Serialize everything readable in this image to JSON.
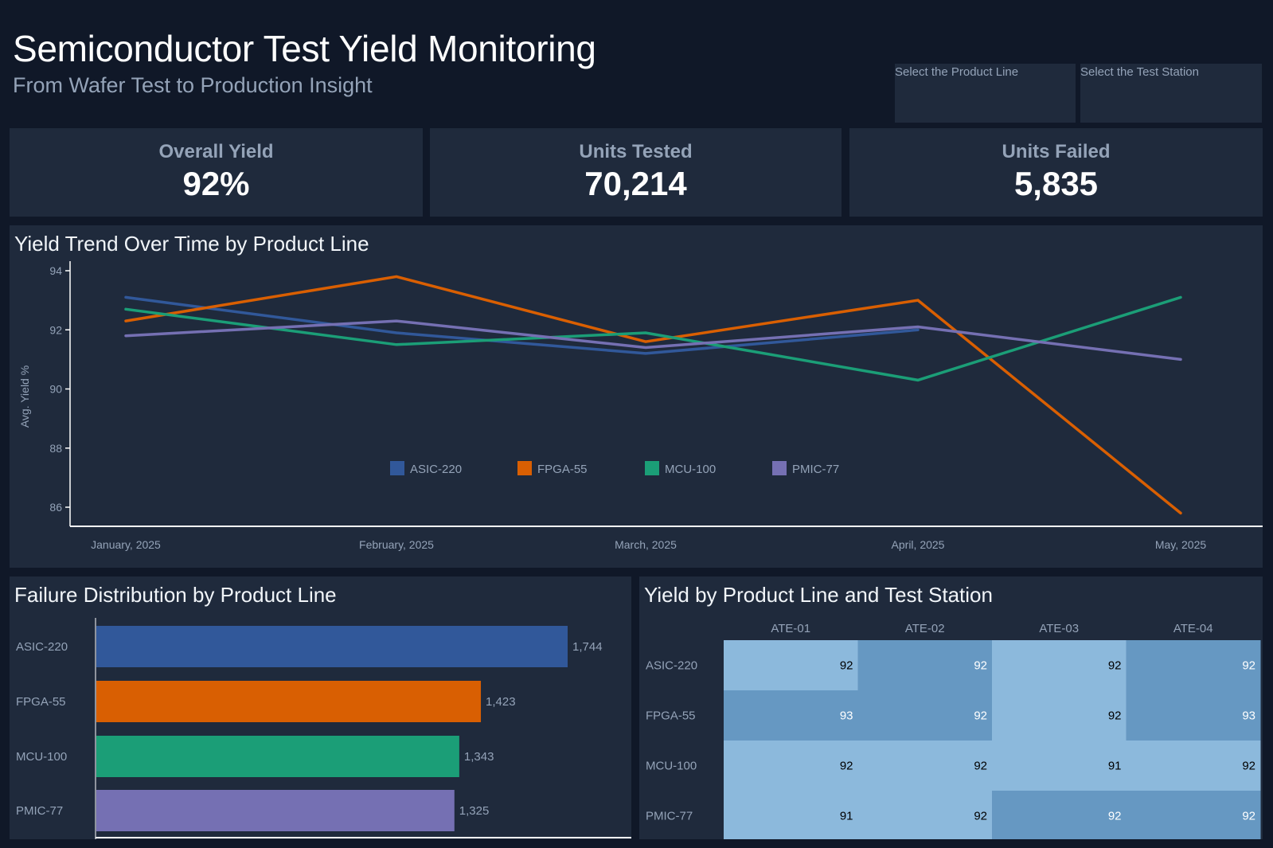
{
  "header": {
    "title": "Semiconductor Test Yield Monitoring",
    "subtitle": "From Wafer Test to Production Insight"
  },
  "filters": {
    "product_line": {
      "placeholder": "Select the Product Line",
      "value": ""
    },
    "test_station": {
      "placeholder": "Select the Test Station",
      "value": ""
    }
  },
  "kpis": [
    {
      "label": "Overall Yield",
      "value": "92%"
    },
    {
      "label": "Units Tested",
      "value": "70,214"
    },
    {
      "label": "Units Failed",
      "value": "5,835"
    }
  ],
  "colors": {
    "ASIC-220": "#31589a",
    "FPGA-55": "#d95f02",
    "MCU-100": "#1b9e77",
    "PMIC-77": "#7570b3",
    "heat_low": "#8cb9dc",
    "heat_high": "#6698c2"
  },
  "chart_data": [
    {
      "type": "line",
      "title": "Yield Trend Over Time by Product Line",
      "xlabel": "",
      "ylabel": "Avg. Yield %",
      "x": [
        "January, 2025",
        "February, 2025",
        "March, 2025",
        "April, 2025",
        "May, 2025"
      ],
      "yticks": [
        86,
        88,
        90,
        92,
        94
      ],
      "ylim": [
        85.4,
        94.3
      ],
      "grid": false,
      "legend_position": "bottom-center",
      "series": [
        {
          "name": "ASIC-220",
          "values": [
            93.1,
            91.9,
            91.2,
            92.0,
            null
          ]
        },
        {
          "name": "FPGA-55",
          "values": [
            92.3,
            93.8,
            91.6,
            93.0,
            85.8
          ]
        },
        {
          "name": "MCU-100",
          "values": [
            92.7,
            91.5,
            91.9,
            90.3,
            93.1
          ]
        },
        {
          "name": "PMIC-77",
          "values": [
            91.8,
            92.3,
            91.4,
            92.1,
            91.0
          ]
        }
      ]
    },
    {
      "type": "bar",
      "orientation": "horizontal",
      "title": "Failure Distribution by Product Line",
      "categories": [
        "ASIC-220",
        "FPGA-55",
        "MCU-100",
        "PMIC-77"
      ],
      "values": [
        1744,
        1423,
        1343,
        1325
      ],
      "value_labels": [
        "1,744",
        "1,423",
        "1,343",
        "1,325"
      ],
      "xlabel": "",
      "ylabel": ""
    },
    {
      "type": "heatmap",
      "title": "Yield by Product Line and Test Station",
      "columns": [
        "ATE-01",
        "ATE-02",
        "ATE-03",
        "ATE-04"
      ],
      "rows": [
        "ASIC-220",
        "FPGA-55",
        "MCU-100",
        "PMIC-77"
      ],
      "values": [
        [
          92,
          92,
          92,
          92
        ],
        [
          93,
          92,
          92,
          93
        ],
        [
          92,
          92,
          91,
          92
        ],
        [
          91,
          92,
          92,
          92
        ]
      ],
      "highlight": [
        [
          false,
          true,
          false,
          true
        ],
        [
          true,
          true,
          false,
          true
        ],
        [
          false,
          false,
          false,
          false
        ],
        [
          false,
          false,
          true,
          true
        ]
      ]
    }
  ]
}
